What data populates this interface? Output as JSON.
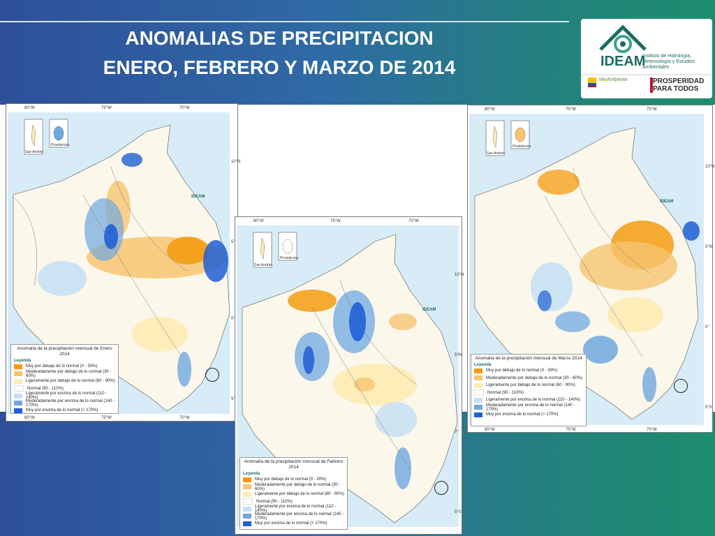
{
  "title": {
    "line1": "ANOMALIAS DE PRECIPITACION",
    "line2": "ENERO, FEBRERO Y MARZO DE 2014"
  },
  "logo": {
    "ideam": "IDEAM",
    "ideam_sub": "Instituto de Hidrología, Meteorología y Estudios Ambientales",
    "minambiente": "MinAmbiente",
    "prosperidad": "PROSPERIDAD PARA TODOS"
  },
  "ticks": {
    "lon80": "80°W",
    "lon75": "75°W",
    "lon70": "70°W",
    "lat10": "10°N",
    "lat5": "5°N",
    "lat0": "0°",
    "lat5s": "5°S"
  },
  "inset": {
    "san_andres": "San Andrés",
    "providencia": "Providencia"
  },
  "map_ideam": "IDEAM",
  "legend": {
    "heading": "Leyenda",
    "titles": {
      "enero": "Anomalía de la precipitación mensual de Enero 2014",
      "febrero": "Anomalía de la precipitación mensual de Febrero 2014",
      "marzo": "Anomalía de la precipitación mensual de Marzo 2014"
    },
    "items": [
      {
        "label": "Muy por debajo de lo normal (0 - 30%)",
        "color": "#f39c12"
      },
      {
        "label": "Moderadamente por debajo de lo normal (30 - 60%)",
        "color": "#f8c471"
      },
      {
        "label": "Ligeramente por debajo de lo normal (60 - 90%)",
        "color": "#fdebb3"
      },
      {
        "label": "Normal (90 - 110%)",
        "color": "#ffffff"
      },
      {
        "label": "Ligeramente por encima de lo normal (110 - 140%)",
        "color": "#c6e0f5"
      },
      {
        "label": "Moderadamente por encima de lo normal (140 - 170%)",
        "color": "#6fa8e0"
      },
      {
        "label": "Muy por encima de lo normal (> 170%)",
        "color": "#1f5fd6"
      }
    ]
  },
  "colors": {
    "header_start": "#2e4f9a",
    "header_end": "#1d8e6d",
    "sea": "#d7ecf7",
    "land": "#fbf7ea"
  }
}
